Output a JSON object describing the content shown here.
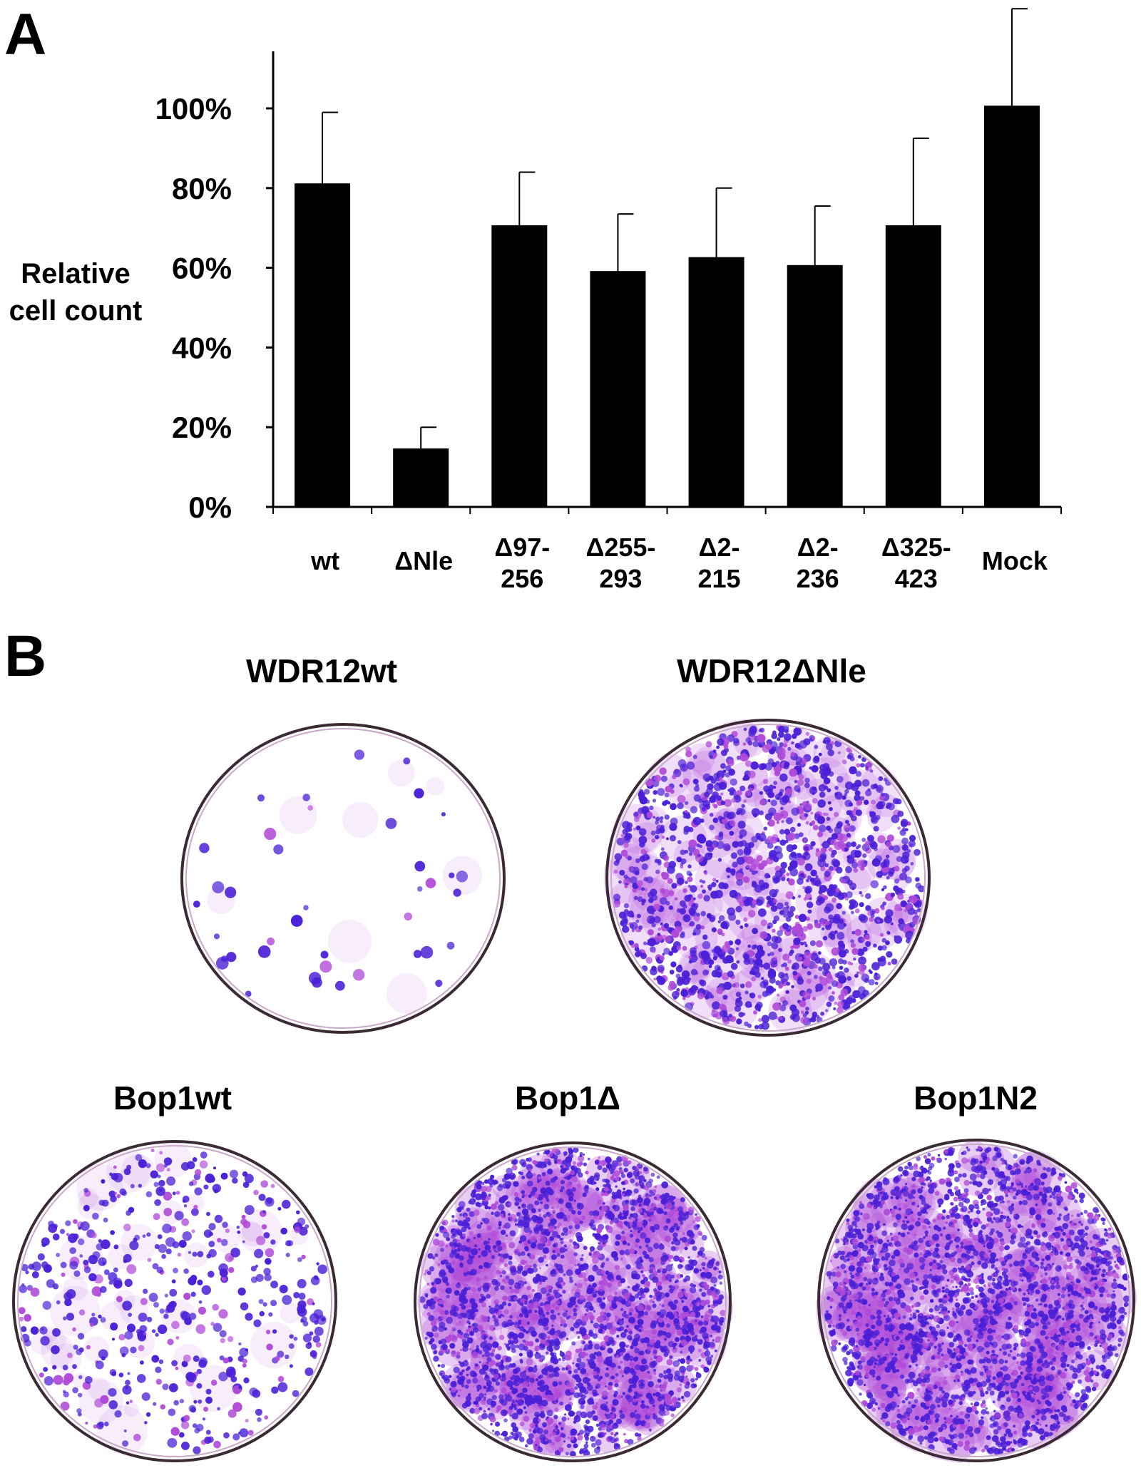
{
  "panels": {
    "a_letter": "A",
    "b_letter": "B"
  },
  "chart_data": {
    "type": "bar",
    "ylabel_line1": "Relative",
    "ylabel_line2": "cell count",
    "ylim": [
      0,
      100
    ],
    "yticks": [
      "0%",
      "20%",
      "40%",
      "60%",
      "80%",
      "100%"
    ],
    "ytick_values": [
      0,
      20,
      40,
      60,
      80,
      100
    ],
    "categories": [
      [
        "wt"
      ],
      [
        "ΔNle"
      ],
      [
        "Δ97-",
        "256"
      ],
      [
        "Δ255-",
        "293"
      ],
      [
        "Δ2-",
        "215"
      ],
      [
        "Δ2-",
        "236"
      ],
      [
        "Δ325-",
        "423"
      ],
      [
        "Mock"
      ]
    ],
    "values": [
      81,
      14.5,
      70.5,
      59,
      62.5,
      60.5,
      70.5,
      100.5
    ],
    "error_upper": [
      99,
      20,
      84,
      73.5,
      80,
      75.5,
      92.5,
      125
    ],
    "bar_color": "#000000"
  },
  "panel_b": {
    "dishes": [
      {
        "label": "WDR12wt",
        "density": "sparse"
      },
      {
        "label": "WDR12ΔNle",
        "density": "dense"
      },
      {
        "label": "Bop1wt",
        "density": "medium"
      },
      {
        "label": "Bop1Δ",
        "density": "very-dense"
      },
      {
        "label": "Bop1N2",
        "density": "very-dense"
      }
    ],
    "stain_color": "#4a1fd6",
    "stain_light_color": "#b04ad8"
  }
}
